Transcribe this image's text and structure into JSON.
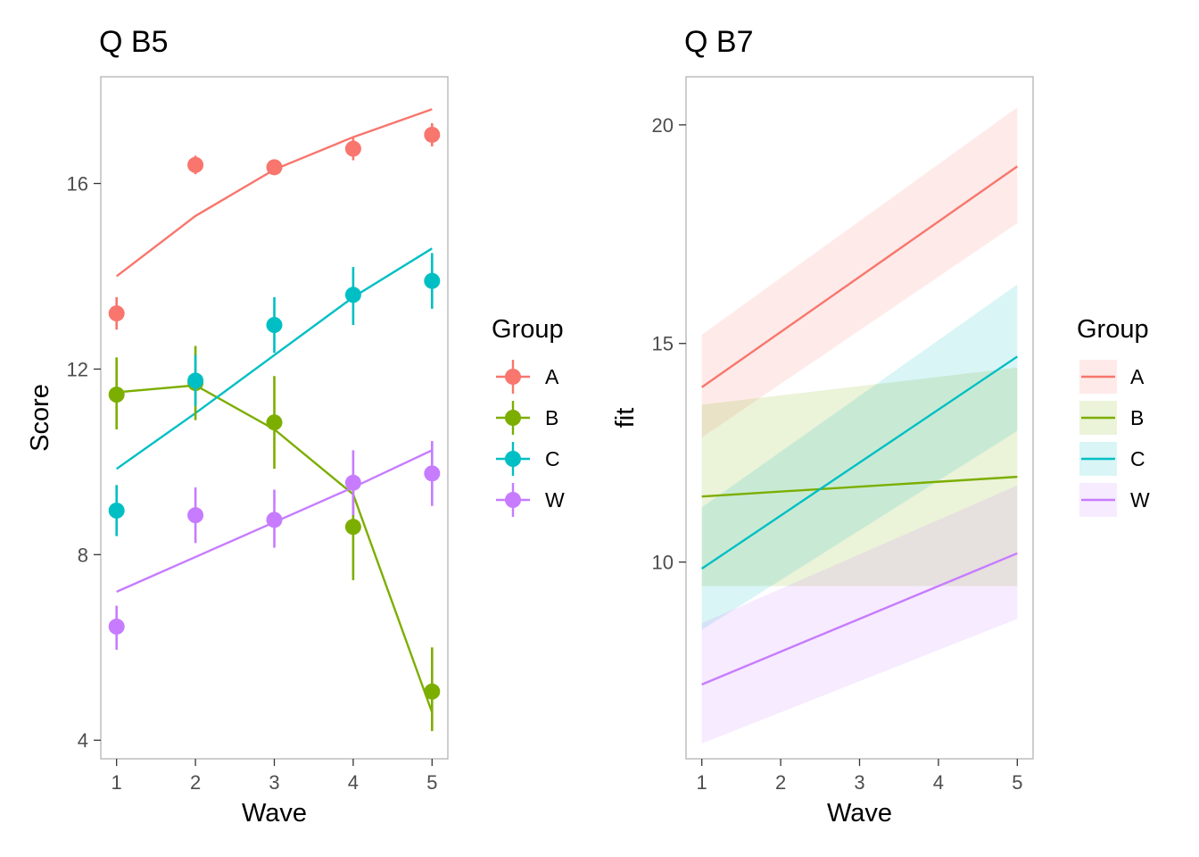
{
  "colors": {
    "A": "#F8766D",
    "B": "#7CAE00",
    "C": "#00BFC4",
    "W": "#C77CFF"
  },
  "legend_title": "Group",
  "chart_data": [
    {
      "type": "line",
      "title": "Q B5",
      "xlabel": "Wave",
      "ylabel": "Score",
      "x": [
        1,
        2,
        3,
        4,
        5
      ],
      "xlim": [
        0.8,
        5.2
      ],
      "ylim": [
        3.6,
        18.3
      ],
      "xticks": [
        1,
        2,
        3,
        4,
        5
      ],
      "yticks": [
        4,
        8,
        12,
        16
      ],
      "legend_position": "right",
      "grid": false,
      "series": [
        {
          "name": "A",
          "fitted": [
            14.0,
            15.3,
            16.3,
            17.0,
            17.6
          ],
          "points": [
            13.2,
            16.4,
            16.35,
            16.75,
            17.05
          ],
          "err_low": [
            12.85,
            16.2,
            16.2,
            16.5,
            16.8
          ],
          "err_high": [
            13.55,
            16.6,
            16.5,
            17.0,
            17.3
          ]
        },
        {
          "name": "B",
          "fitted": [
            11.5,
            11.65,
            10.7,
            9.3,
            4.6
          ],
          "points": [
            11.45,
            11.7,
            10.85,
            8.6,
            5.05
          ],
          "err_low": [
            10.7,
            10.9,
            9.85,
            7.45,
            4.2
          ],
          "err_high": [
            12.25,
            12.5,
            11.85,
            9.7,
            6.0
          ]
        },
        {
          "name": "C",
          "fitted": [
            9.85,
            11.05,
            12.3,
            13.55,
            14.6
          ],
          "points": [
            8.95,
            11.75,
            12.95,
            13.6,
            13.9
          ],
          "err_low": [
            8.4,
            11.2,
            12.35,
            12.95,
            13.3
          ],
          "err_high": [
            9.5,
            12.3,
            13.55,
            14.2,
            14.5
          ]
        },
        {
          "name": "W",
          "fitted": [
            7.2,
            7.95,
            8.7,
            9.45,
            10.25
          ],
          "points": [
            6.45,
            8.85,
            8.75,
            9.55,
            9.75
          ],
          "err_low": [
            5.95,
            8.25,
            8.15,
            8.85,
            9.05
          ],
          "err_high": [
            6.9,
            9.45,
            9.4,
            10.25,
            10.45
          ]
        }
      ]
    },
    {
      "type": "area",
      "title": "Q B7",
      "xlabel": "Wave",
      "ylabel": "fit",
      "x": [
        1,
        5
      ],
      "xlim": [
        0.8,
        5.2
      ],
      "ylim": [
        5.5,
        21.1
      ],
      "xticks": [
        1,
        2,
        3,
        4,
        5
      ],
      "yticks": [
        10,
        15,
        20
      ],
      "legend_position": "right",
      "grid": false,
      "series": [
        {
          "name": "A",
          "fit": [
            14.0,
            19.05
          ],
          "lower": [
            12.85,
            17.75
          ],
          "upper": [
            15.2,
            20.4
          ]
        },
        {
          "name": "B",
          "fit": [
            11.5,
            11.95
          ],
          "lower": [
            9.45,
            9.45
          ],
          "upper": [
            13.6,
            14.45
          ]
        },
        {
          "name": "C",
          "fit": [
            9.85,
            14.7
          ],
          "lower": [
            8.45,
            13.0
          ],
          "upper": [
            11.25,
            16.35
          ]
        },
        {
          "name": "W",
          "fit": [
            7.2,
            10.2
          ],
          "lower": [
            5.85,
            8.7
          ],
          "upper": [
            8.6,
            11.75
          ]
        }
      ]
    }
  ]
}
